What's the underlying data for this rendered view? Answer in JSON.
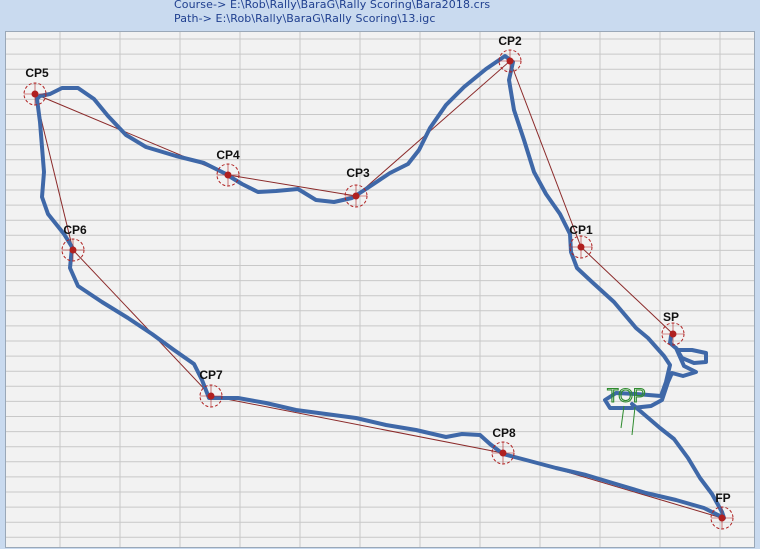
{
  "header": {
    "course_line": "Course-> E:\\Rob\\Rally\\BaraG\\Rally Scoring\\Bara2018.crs",
    "path_line": "Path-> E:\\Rob\\Rally\\BaraG\\Rally Scoring\\13.igc"
  },
  "map": {
    "background_color": "#f2f2f2",
    "grid_color": "#c8c8c8",
    "course_line_color": "#8b2a2a",
    "track_color": "#3f68a8",
    "checkpoint_color": "#b02020",
    "marker_label": "TOP",
    "marker_color": "#2e8b2e"
  },
  "checkpoints": [
    {
      "id": "sp",
      "label": "SP"
    },
    {
      "id": "cp1",
      "label": "CP1"
    },
    {
      "id": "cp2",
      "label": "CP2"
    },
    {
      "id": "cp3",
      "label": "CP3"
    },
    {
      "id": "cp4",
      "label": "CP4"
    },
    {
      "id": "cp5",
      "label": "CP5"
    },
    {
      "id": "cp6",
      "label": "CP6"
    },
    {
      "id": "cp7",
      "label": "CP7"
    },
    {
      "id": "cp8",
      "label": "CP8"
    },
    {
      "id": "fp",
      "label": "FP"
    }
  ]
}
